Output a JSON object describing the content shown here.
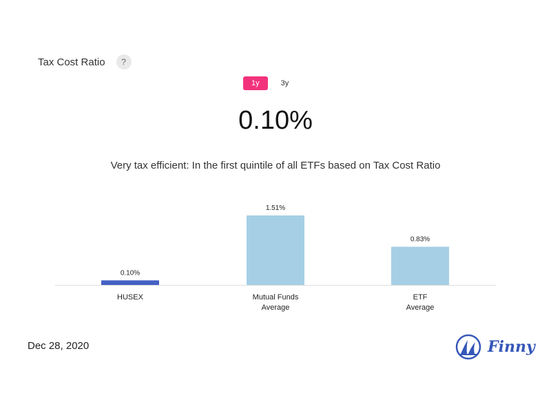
{
  "header": {
    "title": "Tax Cost Ratio",
    "help_label": "?"
  },
  "periods": [
    {
      "label": "1y",
      "active": true
    },
    {
      "label": "3y",
      "active": false
    }
  ],
  "headline_value": "0.10%",
  "description": "Very tax efficient: In the first quintile of all ETFs based on Tax Cost Ratio",
  "chart_data": {
    "type": "bar",
    "categories": [
      [
        "HUSEX"
      ],
      [
        "Mutual Funds",
        "Average"
      ],
      [
        "ETF",
        "Average"
      ]
    ],
    "values": [
      0.1,
      1.51,
      0.83
    ],
    "data_labels": [
      "0.10%",
      "1.51%",
      "0.83%"
    ],
    "colors": [
      "#4461c4",
      "#a6cfe6",
      "#a6cfe6"
    ],
    "ylim": [
      0,
      1.51
    ],
    "title": "",
    "xlabel": "",
    "ylabel": "",
    "grid": false,
    "legend": "none"
  },
  "footer": {
    "date": "Dec 28, 2020",
    "brand": "Finny",
    "brand_color": "#3557b8"
  }
}
